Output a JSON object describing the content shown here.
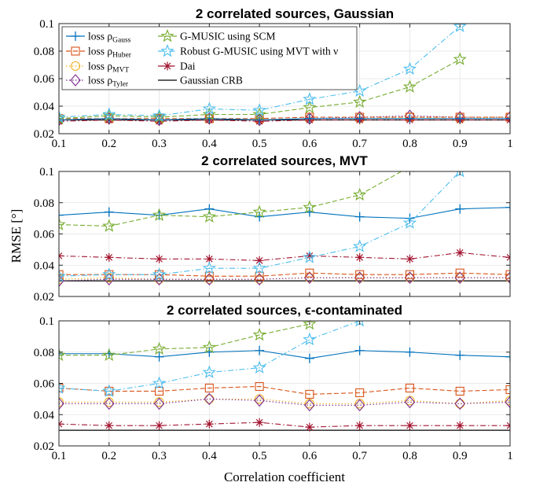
{
  "figure": {
    "xlabel": "Correlation coefficient",
    "ylabel": "RMSE [°]"
  },
  "legend": [
    {
      "key": "loss_gauss",
      "label": "loss ρ",
      "sub": "Gauss"
    },
    {
      "key": "loss_huber",
      "label": "loss ρ",
      "sub": "Huber"
    },
    {
      "key": "loss_mvt",
      "label": "loss ρ",
      "sub": "MVT"
    },
    {
      "key": "loss_tyler",
      "label": "loss ρ",
      "sub": "Tyler"
    },
    {
      "key": "gmusic_scm",
      "label": "G-MUSIC using SCM",
      "sub": ""
    },
    {
      "key": "robust_gmusic",
      "label": "Robust G-MUSIC using MVT with ν",
      "sub": ""
    },
    {
      "key": "dai",
      "label": "Dai",
      "sub": ""
    },
    {
      "key": "crb",
      "label": "Gaussian CRB",
      "sub": ""
    }
  ],
  "styles": {
    "loss_gauss": {
      "color": "#0072BD",
      "marker": "plus",
      "dash": ""
    },
    "loss_huber": {
      "color": "#D95319",
      "marker": "square",
      "dash": "6,3"
    },
    "loss_mvt": {
      "color": "#EDB120",
      "marker": "circle",
      "dash": "1.5,2.5"
    },
    "loss_tyler": {
      "color": "#7E2F8E",
      "marker": "diamond",
      "dash": "1.5,2.5"
    },
    "gmusic_scm": {
      "color": "#77AC30",
      "marker": "star",
      "dash": "6,3"
    },
    "robust_gmusic": {
      "color": "#4DBEEE",
      "marker": "star",
      "dash": "7,3,1.5,3"
    },
    "dai": {
      "color": "#A2142F",
      "marker": "asterisk",
      "dash": "7,3,1.5,3"
    },
    "crb": {
      "color": "#000000",
      "marker": "none",
      "dash": ""
    }
  },
  "chart_data": [
    {
      "type": "line",
      "title": "2 correlated sources, Gaussian",
      "xlabel": "",
      "ylabel": "",
      "xlim": [
        0.1,
        1
      ],
      "ylim": [
        0.02,
        0.1
      ],
      "x": [
        0.1,
        0.2,
        0.3,
        0.4,
        0.5,
        0.6,
        0.7,
        0.8,
        0.9,
        1
      ],
      "xticks": [
        "0.1",
        "0.2",
        "0.3",
        "0.4",
        "0.5",
        "0.6",
        "0.7",
        "0.8",
        "0.9",
        "1"
      ],
      "yticks": [
        0.02,
        0.04,
        0.06,
        0.08,
        0.1
      ],
      "ytick_labels": [
        "0.02",
        "0.04",
        "0.06",
        "0.08",
        "0.1"
      ],
      "grid": true,
      "legend_position": "top-left",
      "series": [
        {
          "key": "loss_gauss",
          "values": [
            0.03,
            0.031,
            0.03,
            0.031,
            0.03,
            0.031,
            0.031,
            0.031,
            0.031,
            0.031
          ]
        },
        {
          "key": "loss_huber",
          "values": [
            0.031,
            0.031,
            0.031,
            0.031,
            0.031,
            0.032,
            0.032,
            0.032,
            0.032,
            0.032
          ]
        },
        {
          "key": "loss_mvt",
          "values": [
            0.03,
            0.031,
            0.03,
            0.031,
            0.03,
            0.031,
            0.031,
            0.032,
            0.031,
            0.032
          ]
        },
        {
          "key": "loss_tyler",
          "values": [
            0.03,
            0.031,
            0.03,
            0.031,
            0.03,
            0.031,
            0.032,
            0.033,
            0.032,
            0.032
          ]
        },
        {
          "key": "gmusic_scm",
          "values": [
            0.031,
            0.033,
            0.032,
            0.034,
            0.034,
            0.039,
            0.043,
            0.054,
            0.074,
            null
          ]
        },
        {
          "key": "robust_gmusic",
          "values": [
            0.032,
            0.034,
            0.033,
            0.038,
            0.037,
            0.045,
            0.051,
            0.067,
            0.098,
            null
          ]
        },
        {
          "key": "dai",
          "values": [
            0.029,
            0.03,
            0.029,
            0.03,
            0.029,
            0.03,
            0.03,
            0.03,
            0.03,
            0.03
          ]
        },
        {
          "key": "crb",
          "values": [
            0.03,
            0.03,
            0.03,
            0.03,
            0.03,
            0.03,
            0.03,
            0.03,
            0.03,
            0.03
          ]
        }
      ]
    },
    {
      "type": "line",
      "title": "2 correlated sources, MVT",
      "xlabel": "",
      "ylabel": "",
      "xlim": [
        0.1,
        1
      ],
      "ylim": [
        0.02,
        0.1
      ],
      "x": [
        0.1,
        0.2,
        0.3,
        0.4,
        0.5,
        0.6,
        0.7,
        0.8,
        0.9,
        1
      ],
      "xticks": [
        "0.1",
        "0.2",
        "0.3",
        "0.4",
        "0.5",
        "0.6",
        "0.7",
        "0.8",
        "0.9",
        "1"
      ],
      "yticks": [
        0.02,
        0.04,
        0.06,
        0.08,
        0.1
      ],
      "ytick_labels": [
        "0.02",
        "0.04",
        "0.06",
        "0.08",
        "0.1"
      ],
      "grid": true,
      "series": [
        {
          "key": "loss_gauss",
          "values": [
            0.072,
            0.074,
            0.072,
            0.076,
            0.071,
            0.074,
            0.071,
            0.07,
            0.076,
            0.077
          ]
        },
        {
          "key": "loss_huber",
          "values": [
            0.034,
            0.034,
            0.034,
            0.033,
            0.033,
            0.035,
            0.034,
            0.034,
            0.035,
            0.034
          ]
        },
        {
          "key": "loss_mvt",
          "values": [
            0.031,
            0.032,
            0.031,
            0.031,
            0.031,
            0.032,
            0.032,
            0.032,
            0.032,
            0.032
          ]
        },
        {
          "key": "loss_tyler",
          "values": [
            0.03,
            0.031,
            0.031,
            0.031,
            0.031,
            0.032,
            0.032,
            0.032,
            0.032,
            0.032
          ]
        },
        {
          "key": "gmusic_scm",
          "values": [
            0.066,
            0.065,
            0.072,
            0.071,
            0.074,
            0.077,
            0.085,
            0.103,
            null,
            null
          ]
        },
        {
          "key": "robust_gmusic",
          "values": [
            0.033,
            0.034,
            0.034,
            0.038,
            0.038,
            0.045,
            0.052,
            0.067,
            0.1,
            null
          ]
        },
        {
          "key": "dai",
          "values": [
            0.046,
            0.045,
            0.044,
            0.044,
            0.043,
            0.046,
            0.045,
            0.044,
            0.048,
            0.045
          ]
        },
        {
          "key": "crb",
          "values": [
            0.03,
            0.03,
            0.03,
            0.03,
            0.03,
            0.03,
            0.03,
            0.03,
            0.03,
            0.03
          ]
        }
      ]
    },
    {
      "type": "line",
      "title": "2 correlated sources, ϵ-contaminated",
      "xlabel": "Correlation coefficient",
      "ylabel": "",
      "xlim": [
        0.1,
        1
      ],
      "ylim": [
        0.02,
        0.1
      ],
      "x": [
        0.1,
        0.2,
        0.3,
        0.4,
        0.5,
        0.6,
        0.7,
        0.8,
        0.9,
        1
      ],
      "xticks": [
        "0.1",
        "0.2",
        "0.3",
        "0.4",
        "0.5",
        "0.6",
        "0.7",
        "0.8",
        "0.9",
        "1"
      ],
      "yticks": [
        0.02,
        0.04,
        0.06,
        0.08,
        0.1
      ],
      "ytick_labels": [
        "0.02",
        "0.04",
        "0.06",
        "0.08",
        "0.1"
      ],
      "grid": true,
      "series": [
        {
          "key": "loss_gauss",
          "values": [
            0.079,
            0.079,
            0.077,
            0.08,
            0.081,
            0.076,
            0.081,
            0.08,
            0.078,
            0.077
          ]
        },
        {
          "key": "loss_huber",
          "values": [
            0.057,
            0.055,
            0.055,
            0.057,
            0.058,
            0.053,
            0.054,
            0.057,
            0.055,
            0.056
          ]
        },
        {
          "key": "loss_mvt",
          "values": [
            0.048,
            0.048,
            0.048,
            0.05,
            0.05,
            0.047,
            0.047,
            0.049,
            0.047,
            0.049
          ]
        },
        {
          "key": "loss_tyler",
          "values": [
            0.047,
            0.047,
            0.047,
            0.05,
            0.049,
            0.046,
            0.046,
            0.048,
            0.047,
            0.048
          ]
        },
        {
          "key": "gmusic_scm",
          "values": [
            0.078,
            0.078,
            0.082,
            0.083,
            0.091,
            0.098,
            null,
            null,
            null,
            null
          ]
        },
        {
          "key": "robust_gmusic",
          "values": [
            0.057,
            0.055,
            0.06,
            0.067,
            0.07,
            0.088,
            0.1,
            null,
            null,
            null
          ]
        },
        {
          "key": "dai",
          "values": [
            0.034,
            0.033,
            0.033,
            0.034,
            0.035,
            0.032,
            0.033,
            0.033,
            0.033,
            0.033
          ]
        },
        {
          "key": "crb",
          "values": [
            0.03,
            0.03,
            0.03,
            0.03,
            0.03,
            0.03,
            0.03,
            0.03,
            0.03,
            0.03
          ]
        }
      ]
    }
  ]
}
